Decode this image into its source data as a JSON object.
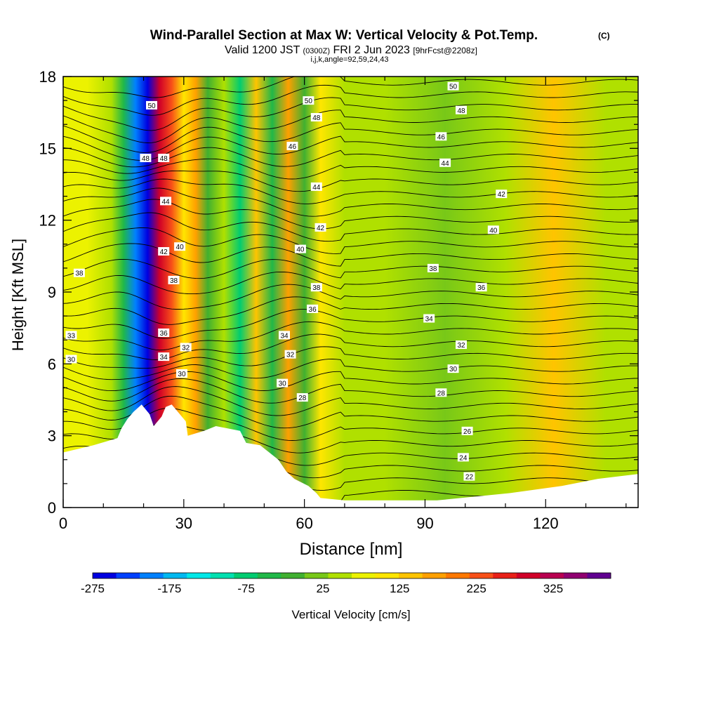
{
  "chart_data": {
    "type": "heatmap",
    "title": "Wind-Parallel Section at Max W: Vertical Velocity & Pot.Temp.",
    "title_mark": "(C)",
    "subtitle_main": "Valid 1200 JST",
    "subtitle_small1": "(0300Z)",
    "subtitle_mid": "FRI 2 Jun 2023",
    "subtitle_small2": "[9hrFcst@2208z]",
    "subtitle2": "i,j,k,angle=92,59,24,43",
    "xlabel": "Distance [nm]",
    "ylabel": "Height [Kft MSL]",
    "xlim": [
      0,
      143
    ],
    "ylim": [
      0,
      18
    ],
    "xticks": [
      0,
      30,
      60,
      90,
      120
    ],
    "yticks": [
      0,
      3,
      6,
      9,
      12,
      15,
      18
    ],
    "colorbar_label": "Vertical Velocity [cm/s]",
    "colorbar_ticks": [
      "-275",
      "-175",
      "-75",
      "25",
      "125",
      "225",
      "325"
    ],
    "colorbar_colors": [
      "#0000e0",
      "#0040ff",
      "#0080ff",
      "#00b8f0",
      "#00e8e8",
      "#00e0b0",
      "#00cc70",
      "#20b848",
      "#40b030",
      "#78c818",
      "#b0e000",
      "#ecf200",
      "#ffe600",
      "#ffc400",
      "#ffa000",
      "#ff7800",
      "#f85018",
      "#e82018",
      "#d00028",
      "#b80050",
      "#900070",
      "#600090"
    ],
    "velocity_bands_cm_s": [
      {
        "x": 0,
        "w": 30
      },
      {
        "x": 6,
        "w": 40
      },
      {
        "x": 12,
        "w": 5
      },
      {
        "x": 15,
        "w": -90
      },
      {
        "x": 18,
        "w": -220
      },
      {
        "x": 21,
        "w": -275
      },
      {
        "x": 24,
        "w": 260
      },
      {
        "x": 27,
        "w": 200
      },
      {
        "x": 30,
        "w": 60
      },
      {
        "x": 33,
        "w": 120
      },
      {
        "x": 36,
        "w": -60
      },
      {
        "x": 40,
        "w": 20
      },
      {
        "x": 44,
        "w": -120
      },
      {
        "x": 48,
        "w": 90
      },
      {
        "x": 52,
        "w": -80
      },
      {
        "x": 56,
        "w": 130
      },
      {
        "x": 60,
        "w": -60
      },
      {
        "x": 64,
        "w": 80
      },
      {
        "x": 70,
        "w": 0
      },
      {
        "x": 80,
        "w": 20
      },
      {
        "x": 95,
        "w": -20
      },
      {
        "x": 110,
        "w": 20
      },
      {
        "x": 122,
        "w": 100
      },
      {
        "x": 135,
        "w": 15
      }
    ],
    "theta_contour_labels": [
      {
        "text": "50",
        "x": 22,
        "y": 16.8
      },
      {
        "text": "50",
        "x": 61,
        "y": 17.0
      },
      {
        "text": "50",
        "x": 97,
        "y": 17.6
      },
      {
        "text": "48",
        "x": 20.5,
        "y": 14.6
      },
      {
        "text": "48",
        "x": 25,
        "y": 14.6
      },
      {
        "text": "48",
        "x": 63,
        "y": 16.3
      },
      {
        "text": "48",
        "x": 99,
        "y": 16.6
      },
      {
        "text": "46",
        "x": 57,
        "y": 15.1
      },
      {
        "text": "46",
        "x": 94,
        "y": 15.5
      },
      {
        "text": "44",
        "x": 25.5,
        "y": 12.8
      },
      {
        "text": "44",
        "x": 63,
        "y": 13.4
      },
      {
        "text": "44",
        "x": 95,
        "y": 14.4
      },
      {
        "text": "42",
        "x": 25,
        "y": 10.7
      },
      {
        "text": "42",
        "x": 64,
        "y": 11.7
      },
      {
        "text": "42",
        "x": 109,
        "y": 13.1
      },
      {
        "text": "40",
        "x": 29,
        "y": 10.9
      },
      {
        "text": "40",
        "x": 59,
        "y": 10.8
      },
      {
        "text": "40",
        "x": 107,
        "y": 11.6
      },
      {
        "text": "38",
        "x": 4,
        "y": 9.8
      },
      {
        "text": "38",
        "x": 27.5,
        "y": 9.5
      },
      {
        "text": "38",
        "x": 63,
        "y": 9.2
      },
      {
        "text": "38",
        "x": 92,
        "y": 10.0
      },
      {
        "text": "36",
        "x": 62,
        "y": 8.3
      },
      {
        "text": "36",
        "x": 104,
        "y": 9.2
      },
      {
        "text": "36",
        "x": 25,
        "y": 7.3
      },
      {
        "text": "34",
        "x": 55,
        "y": 7.2
      },
      {
        "text": "34",
        "x": 91,
        "y": 7.9
      },
      {
        "text": "34",
        "x": 25,
        "y": 6.3
      },
      {
        "text": "33",
        "x": 2,
        "y": 7.2
      },
      {
        "text": "32",
        "x": 30.5,
        "y": 6.7
      },
      {
        "text": "32",
        "x": 56.5,
        "y": 6.4
      },
      {
        "text": "32",
        "x": 99,
        "y": 6.8
      },
      {
        "text": "30",
        "x": 2,
        "y": 6.2
      },
      {
        "text": "30",
        "x": 29.5,
        "y": 5.6
      },
      {
        "text": "30",
        "x": 54.5,
        "y": 5.2
      },
      {
        "text": "30",
        "x": 97,
        "y": 5.8
      },
      {
        "text": "28",
        "x": 59.5,
        "y": 4.6
      },
      {
        "text": "28",
        "x": 94,
        "y": 4.8
      },
      {
        "text": "26",
        "x": 100.5,
        "y": 3.2
      },
      {
        "text": "24",
        "x": 99.5,
        "y": 2.1
      },
      {
        "text": "22",
        "x": 101,
        "y": 1.3
      }
    ],
    "terrain_height_kft": [
      {
        "x": 0,
        "h": 2.3
      },
      {
        "x": 7.5,
        "h": 2.6
      },
      {
        "x": 13.5,
        "h": 2.9
      },
      {
        "x": 14.5,
        "h": 3.3
      },
      {
        "x": 16,
        "h": 3.7
      },
      {
        "x": 17.5,
        "h": 4.0
      },
      {
        "x": 19.5,
        "h": 4.3
      },
      {
        "x": 21.5,
        "h": 3.9
      },
      {
        "x": 22.5,
        "h": 3.4
      },
      {
        "x": 24.5,
        "h": 3.8
      },
      {
        "x": 25.5,
        "h": 4.2
      },
      {
        "x": 27,
        "h": 4.3
      },
      {
        "x": 30.5,
        "h": 3.6
      },
      {
        "x": 31,
        "h": 3.0
      },
      {
        "x": 35,
        "h": 3.2
      },
      {
        "x": 38,
        "h": 3.4
      },
      {
        "x": 44,
        "h": 3.2
      },
      {
        "x": 45.5,
        "h": 2.7
      },
      {
        "x": 49,
        "h": 2.6
      },
      {
        "x": 50.5,
        "h": 2.4
      },
      {
        "x": 53.5,
        "h": 2.0
      },
      {
        "x": 55.5,
        "h": 1.5
      },
      {
        "x": 57.5,
        "h": 1.2
      },
      {
        "x": 61,
        "h": 0.9
      },
      {
        "x": 63,
        "h": 0.6
      },
      {
        "x": 64,
        "h": 0.4
      },
      {
        "x": 70,
        "h": 0.3
      },
      {
        "x": 80,
        "h": 0.3
      },
      {
        "x": 93,
        "h": 0.3
      },
      {
        "x": 111,
        "h": 0.6
      },
      {
        "x": 124,
        "h": 0.9
      },
      {
        "x": 133,
        "h": 1.2
      },
      {
        "x": 143,
        "h": 1.4
      }
    ]
  }
}
